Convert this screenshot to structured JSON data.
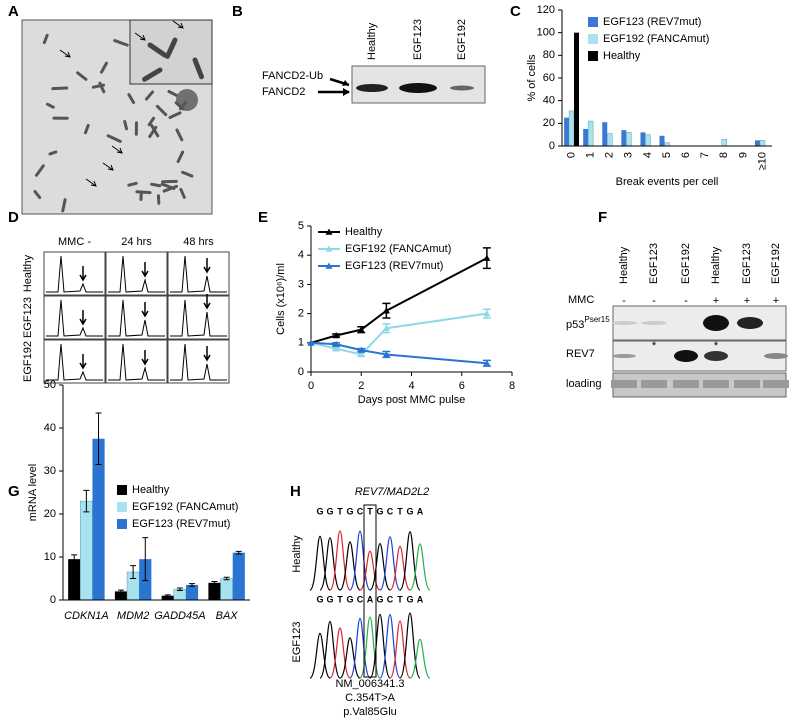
{
  "panels": {
    "labels": [
      "A",
      "B",
      "C",
      "D",
      "E",
      "F",
      "G",
      "H"
    ]
  },
  "blot_b": {
    "lanes": [
      "Healthy",
      "EGF123",
      "EGF192"
    ],
    "bands": [
      "FANCD2-Ub",
      "FANCD2"
    ]
  },
  "flow_d": {
    "columns": [
      "MMC -",
      "24 hrs",
      "48 hrs"
    ],
    "rows": [
      "Healthy",
      "EGF123",
      "EGF192"
    ]
  },
  "blot_f": {
    "lanes": [
      "Healthy",
      "EGF123",
      "EGF192",
      "Healthy",
      "EGF123",
      "EGF192"
    ],
    "treatment_label": "MMC",
    "treatment": [
      "-",
      "-",
      "-",
      "+",
      "+",
      "+"
    ],
    "rows": [
      "p53",
      "REV7",
      "loading"
    ],
    "p53_superscript": "Pser15",
    "asterisks": [
      "*",
      "*"
    ]
  },
  "sequence_h": {
    "title": "REV7/MAD2L2",
    "rows": [
      "Healthy",
      "EGF123"
    ],
    "reads": [
      [
        "G",
        "G",
        "T",
        "G",
        "C",
        "T",
        "G",
        "C",
        "T",
        "G",
        "A"
      ],
      [
        "G",
        "G",
        "T",
        "G",
        "C",
        "A",
        "G",
        "C",
        "T",
        "G",
        "A"
      ]
    ],
    "notes": [
      "NM_006341.3",
      "C.354T>A",
      "p.Val85Glu"
    ]
  },
  "chart_data": [
    {
      "type": "bar",
      "x_label": "Break events per cell",
      "y_label": "% of cells",
      "categories": [
        "0",
        "1",
        "2",
        "3",
        "4",
        "5",
        "6",
        "7",
        "8",
        "9",
        "≥10"
      ],
      "rotate_categories": true,
      "series": [
        {
          "name": "EGF123 (REV7mut)",
          "color": "#3a78d4",
          "values": [
            25,
            15,
            21,
            14,
            12,
            9,
            0,
            0,
            0,
            0,
            5
          ]
        },
        {
          "name": "EGF192 (FANCAmut)",
          "color": "#a8e2ee",
          "values": [
            31,
            22,
            11,
            12,
            10,
            3,
            0,
            0,
            6,
            0,
            5
          ]
        },
        {
          "name": "Healthy",
          "color": "#000000",
          "values": [
            100,
            0,
            0,
            0,
            0,
            0,
            0,
            0,
            0,
            0,
            0
          ]
        }
      ],
      "ylim": [
        0,
        120
      ],
      "yticks": [
        0,
        20,
        40,
        60,
        80,
        100,
        120
      ],
      "legend": "top-right"
    },
    {
      "type": "line",
      "x_label": "Days post MMC pulse",
      "y_label": "Cells (x10⁶)/ml",
      "x": [
        0,
        1,
        2,
        3,
        7
      ],
      "xlim": [
        0,
        8
      ],
      "xticks": [
        0,
        2,
        4,
        6,
        8
      ],
      "series": [
        {
          "name": "Healthy",
          "color": "#000000",
          "values": [
            1,
            1.25,
            1.45,
            2.1,
            3.9
          ],
          "errors": [
            0,
            0.05,
            0.1,
            0.25,
            0.35
          ]
        },
        {
          "name": "EGF192 (FANCAmut)",
          "color": "#8fd8ea",
          "values": [
            1,
            0.8,
            0.6,
            1.5,
            2.0
          ],
          "errors": [
            0,
            0.05,
            0.05,
            0.15,
            0.15
          ]
        },
        {
          "name": "EGF123 (REV7mut)",
          "color": "#2a74d2",
          "values": [
            1,
            0.95,
            0.75,
            0.6,
            0.3
          ],
          "errors": [
            0,
            0.05,
            0.05,
            0.1,
            0.1
          ]
        }
      ],
      "ylim": [
        0,
        5
      ],
      "yticks": [
        0,
        1,
        2,
        3,
        4,
        5
      ],
      "legend": "top-left"
    },
    {
      "type": "bar",
      "y_label": "mRNA level",
      "italic_categories": true,
      "categories": [
        "CDKN1A",
        "MDM2",
        "GADD45A",
        "BAX"
      ],
      "series": [
        {
          "name": "Healthy",
          "color": "#000000",
          "values": [
            9.5,
            2,
            1,
            4
          ],
          "errors": [
            1,
            0.3,
            0.2,
            0.3
          ]
        },
        {
          "name": "EGF192 (FANCAmut)",
          "color": "#a8e2ee",
          "values": [
            23,
            6.5,
            2.5,
            5
          ],
          "errors": [
            2.5,
            1.5,
            0.3,
            0.3
          ]
        },
        {
          "name": "EGF123 (REV7mut)",
          "color": "#2a74d2",
          "values": [
            37.5,
            9.5,
            3.5,
            11
          ],
          "errors": [
            6,
            5,
            0.3,
            0.3
          ]
        }
      ],
      "ylim": [
        0,
        50
      ],
      "yticks": [
        0,
        10,
        20,
        30,
        40,
        50
      ],
      "legend": "top-right"
    }
  ]
}
